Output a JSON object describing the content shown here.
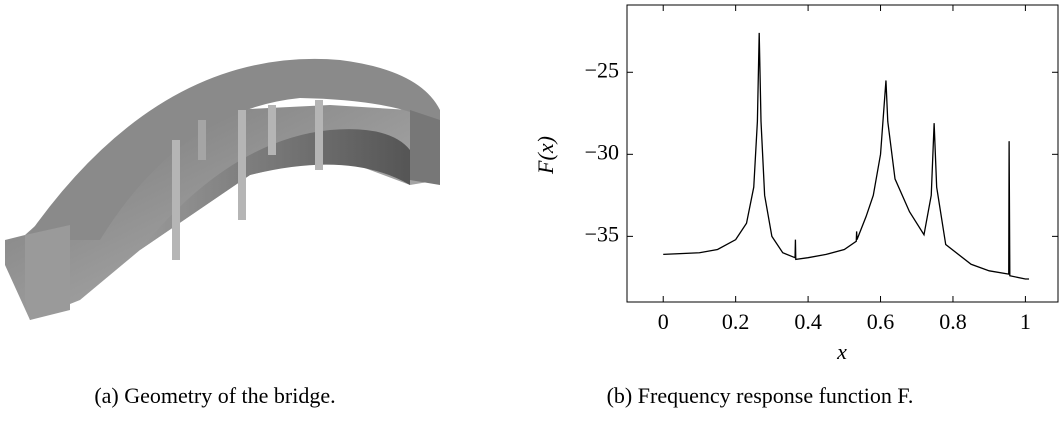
{
  "captions": [
    "(a) Geometry of the bridge.",
    "(b) Frequency response function F."
  ],
  "chart_data": {
    "type": "line",
    "xlabel": "x",
    "ylabel": "F(x)",
    "color": "#000000",
    "x": [
      0,
      0.1,
      0.15,
      0.2,
      0.23,
      0.25,
      0.26,
      0.265,
      0.27,
      0.28,
      0.3,
      0.33,
      0.364,
      0.365,
      0.366,
      0.4,
      0.45,
      0.5,
      0.533,
      0.534,
      0.535,
      0.56,
      0.58,
      0.6,
      0.61,
      0.615,
      0.62,
      0.64,
      0.68,
      0.72,
      0.74,
      0.748,
      0.755,
      0.78,
      0.85,
      0.9,
      0.954,
      0.955,
      0.957,
      1.0,
      1.01
    ],
    "values": [
      -36.1,
      -36.0,
      -35.8,
      -35.2,
      -34.2,
      -32.0,
      -28.0,
      -22.6,
      -28.0,
      -32.5,
      -35.0,
      -36.0,
      -36.3,
      -35.2,
      -36.4,
      -36.3,
      -36.1,
      -35.8,
      -35.3,
      -34.7,
      -35.2,
      -33.8,
      -32.5,
      -30.0,
      -27.0,
      -25.5,
      -28.0,
      -31.5,
      -33.5,
      -34.9,
      -32.5,
      -28.1,
      -32.0,
      -35.5,
      -36.7,
      -37.1,
      -37.3,
      -29.2,
      -37.4,
      -37.6,
      -37.6
    ],
    "xlim": [
      -0.1,
      1.09
    ],
    "ylim": [
      -39,
      -20.9
    ],
    "xticks": [
      0,
      0.2,
      0.4,
      0.6,
      0.8,
      1
    ],
    "yticks": [
      {
        "value": -35,
        "label": "−35"
      },
      {
        "value": -30,
        "label": "−30"
      },
      {
        "value": -25,
        "label": "−25"
      }
    ]
  }
}
